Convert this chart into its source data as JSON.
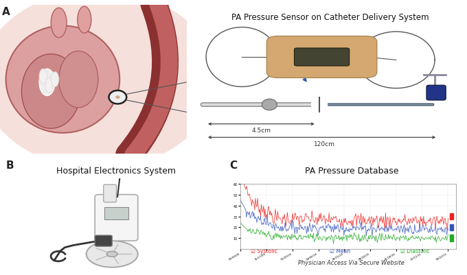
{
  "bg_color": "#ffffff",
  "panel_bg": "#ffffff",
  "border_color": "#aaaaaa",
  "panel_A_label": "A",
  "panel_A_title": "PA Pressure Sensor on Catheter Delivery System",
  "panel_A_dim1": "4.5cm",
  "panel_A_dim2": "120cm",
  "panel_B_label": "B",
  "panel_B_title": "Hospital Electronics System",
  "panel_C_label": "C",
  "panel_C_title": "PA Pressure Database",
  "panel_C_footer": "Physician Access Via Secure Website",
  "panel_C_legend": [
    "Systolic",
    "Mean",
    "Diastolic"
  ],
  "panel_C_colors": [
    "#ee2222",
    "#3355bb",
    "#22aa22"
  ],
  "heart_bg": "#f0d0cc",
  "heart_outer": "#e8b8b0",
  "heart_inner": "#d49090",
  "vessel_color": "#c07070",
  "tissue_bg": "#f5e0dc"
}
